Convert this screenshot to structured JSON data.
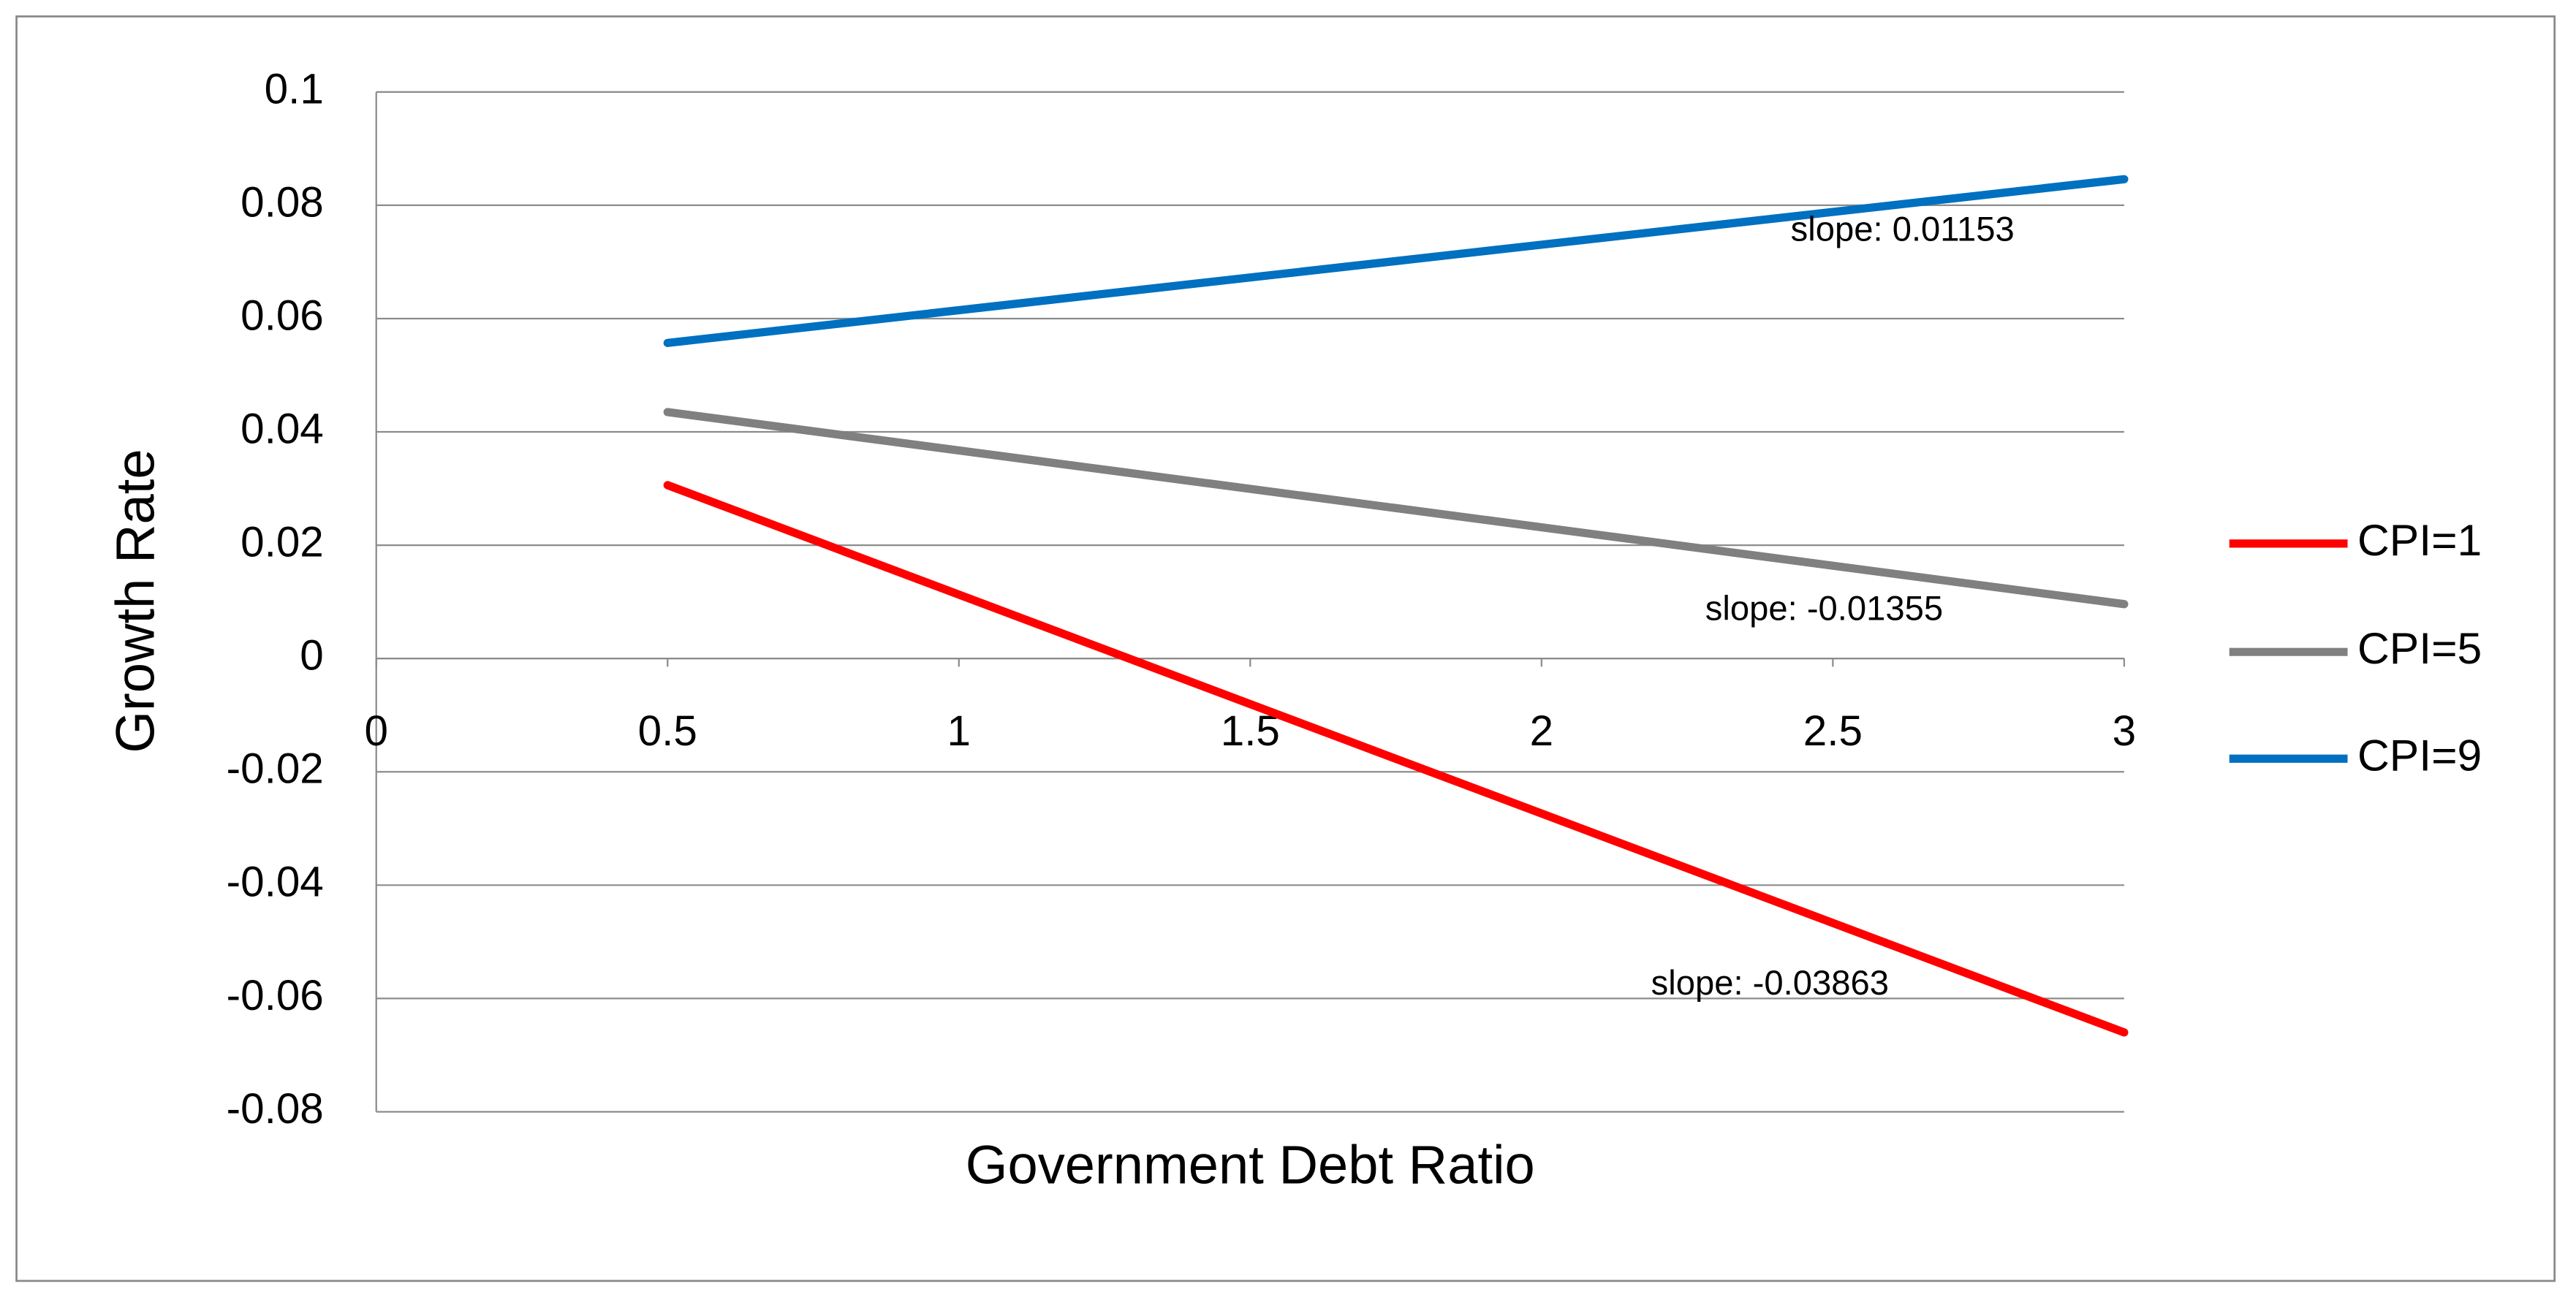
{
  "chart_data": {
    "type": "line",
    "x_label": "Government Debt Ratio",
    "y_label": "Growth Rate",
    "x": [
      0.5,
      3
    ],
    "series": [
      {
        "name": "CPI=1",
        "color": "#ff0000",
        "values": [
          0.0306,
          -0.066
        ]
      },
      {
        "name": "CPI=5",
        "color": "#808080",
        "values": [
          0.0435,
          0.0096
        ]
      },
      {
        "name": "CPI=9",
        "color": "#0070c0",
        "values": [
          0.0557,
          0.0846
        ]
      }
    ],
    "annotations": [
      "slope: -0.03863",
      "slope: -0.01355",
      "slope: 0.01153"
    ],
    "xlim": [
      0,
      3
    ],
    "xticks": [
      0,
      0.5,
      1,
      1.5,
      2,
      2.5,
      3
    ],
    "ylim": [
      -0.08,
      0.1
    ],
    "yticks": [
      0.1,
      0.08,
      0.06,
      0.04,
      0.02,
      0,
      -0.02,
      -0.04,
      -0.06,
      -0.08
    ],
    "grid": true,
    "legend": "right"
  }
}
